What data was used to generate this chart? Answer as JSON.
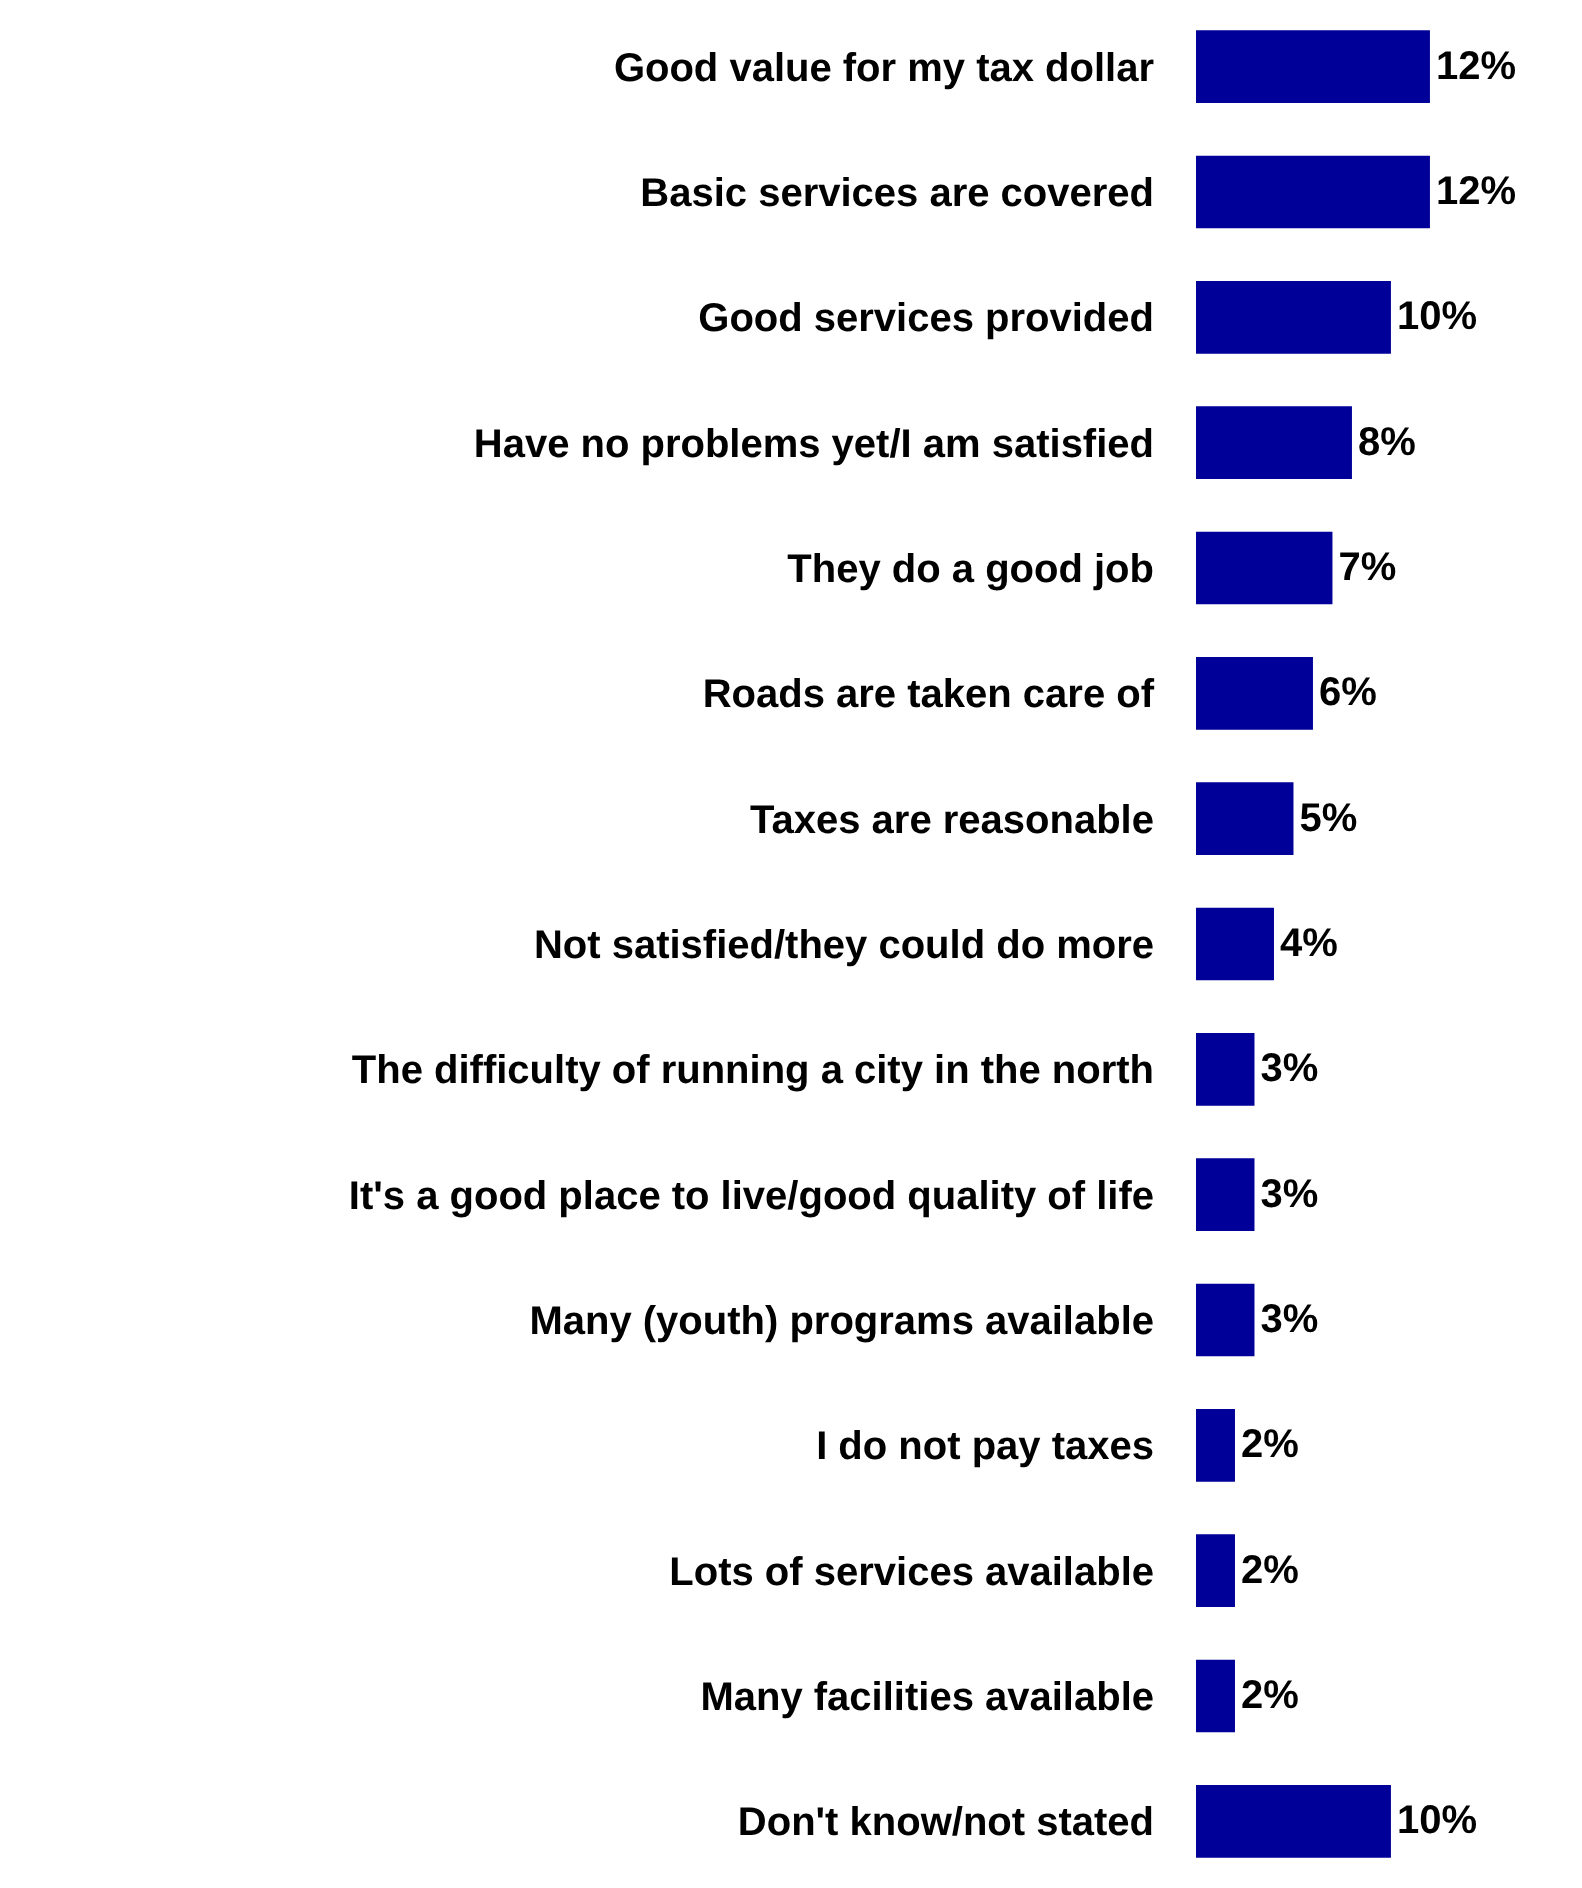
{
  "chart_data": {
    "type": "bar",
    "orientation": "horizontal",
    "categories": [
      "Good value for my tax dollar",
      "Basic services are covered",
      "Good services provided",
      "Have no problems yet/I am satisfied",
      "They do a good job",
      "Roads are taken care of",
      "Taxes are reasonable",
      "Not satisfied/they could do more",
      "The difficulty of running a city in the north",
      "It's a good place to live/good quality of life",
      "Many (youth) programs available",
      "I do not pay taxes",
      "Lots of services available",
      "Many facilities available",
      "Don't know/not stated"
    ],
    "values": [
      12,
      12,
      10,
      8,
      7,
      6,
      5,
      4,
      3,
      3,
      3,
      2,
      2,
      2,
      10
    ],
    "value_labels": [
      "12%",
      "12%",
      "10%",
      "8%",
      "7%",
      "6%",
      "5%",
      "4%",
      "3%",
      "3%",
      "3%",
      "2%",
      "2%",
      "2%",
      "10%"
    ],
    "color": "#000099"
  }
}
